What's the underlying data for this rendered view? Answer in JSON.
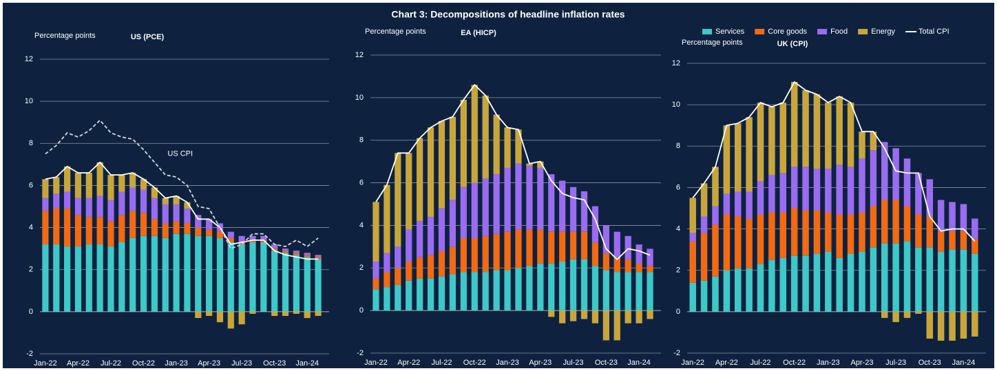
{
  "title": "Chart 3: Decompositions of headline inflation rates",
  "chart_data": [
    {
      "type": "bar",
      "stacked": true,
      "title": "US (PCE)",
      "ylabel": "Percentage points",
      "grid": true,
      "legend": false,
      "categories": [
        "Jan-22",
        null,
        null,
        "Apr-22",
        null,
        null,
        "Jul-22",
        null,
        null,
        "Oct-22",
        null,
        null,
        "Jan-23",
        null,
        null,
        "Apr-23",
        null,
        null,
        "Jul-23",
        null,
        null,
        "Oct-23",
        null,
        null,
        "Jan-24",
        null
      ],
      "ylim": [
        -2,
        12
      ],
      "yticks": [
        -2,
        0,
        2,
        4,
        6,
        8,
        10,
        12
      ],
      "series": [
        {
          "name": "Services",
          "color": "#3ec8c8",
          "values": [
            3.2,
            3.2,
            3.1,
            3.1,
            3.2,
            3.2,
            3.1,
            3.3,
            3.5,
            3.6,
            3.6,
            3.5,
            3.7,
            3.7,
            3.6,
            3.6,
            3.5,
            3.3,
            3.2,
            3.3,
            3.3,
            2.9,
            2.8,
            2.7,
            2.6,
            2.5
          ]
        },
        {
          "name": "Core goods",
          "color": "#f26a12",
          "values": [
            1.6,
            1.7,
            1.8,
            1.5,
            1.3,
            1.3,
            1.2,
            1.3,
            1.3,
            1.1,
            0.8,
            0.7,
            0.6,
            0.5,
            0.4,
            0.3,
            0.3,
            0.2,
            0.1,
            0.1,
            0.1,
            0.1,
            0.1,
            0.1,
            0.1,
            0.1
          ]
        },
        {
          "name": "Food",
          "color": "#9a6cf0",
          "values": [
            0.6,
            0.7,
            0.8,
            0.8,
            0.9,
            1.0,
            1.0,
            1.1,
            1.1,
            1.1,
            1.0,
            0.9,
            0.8,
            0.7,
            0.6,
            0.5,
            0.4,
            0.3,
            0.3,
            0.2,
            0.2,
            0.2,
            0.1,
            0.1,
            0.1,
            0.1
          ]
        },
        {
          "name": "Energy",
          "color": "#c9a63c",
          "values": [
            0.9,
            0.8,
            1.2,
            1.2,
            1.2,
            1.6,
            1.2,
            0.8,
            0.7,
            0.5,
            0.5,
            0.3,
            0.4,
            0.3,
            -0.3,
            -0.2,
            -0.5,
            -0.8,
            -0.6,
            -0.1,
            0.0,
            -0.2,
            -0.2,
            -0.1,
            -0.3,
            -0.2
          ]
        },
        {
          "name": "Total CPI",
          "type": "line",
          "color": "#ffffff",
          "values": [
            6.3,
            6.4,
            6.9,
            6.6,
            6.6,
            7.1,
            6.5,
            6.5,
            6.6,
            6.3,
            5.9,
            5.4,
            5.5,
            5.2,
            4.4,
            4.4,
            4.0,
            3.2,
            3.3,
            3.4,
            3.4,
            2.9,
            2.7,
            2.6,
            2.5,
            2.5
          ]
        },
        {
          "name": "US CPI",
          "type": "line",
          "dashed": true,
          "color": "#d8d8d8",
          "values": [
            7.5,
            7.9,
            8.5,
            8.3,
            8.6,
            9.1,
            8.5,
            8.3,
            8.2,
            7.7,
            7.1,
            6.5,
            6.4,
            6.0,
            5.0,
            4.9,
            4.0,
            3.0,
            3.2,
            3.7,
            3.7,
            3.2,
            3.1,
            3.4,
            3.1,
            3.5
          ]
        }
      ]
    },
    {
      "type": "bar",
      "stacked": true,
      "title": "EA (HICP)",
      "ylabel": "Percentage points",
      "grid": true,
      "legend": false,
      "categories": [
        "Jan-22",
        null,
        null,
        "Apr-22",
        null,
        null,
        "Jul-22",
        null,
        null,
        "Oct-22",
        null,
        null,
        "Jan-23",
        null,
        null,
        "Apr-23",
        null,
        null,
        "Jul-23",
        null,
        null,
        "Oct-23",
        null,
        null,
        "Jan-24",
        null
      ],
      "ylim": [
        -2,
        12
      ],
      "yticks": [
        -2,
        0,
        2,
        4,
        6,
        8,
        10,
        12
      ],
      "series": [
        {
          "name": "Services",
          "color": "#3ec8c8",
          "values": [
            1.0,
            1.1,
            1.2,
            1.4,
            1.5,
            1.5,
            1.6,
            1.7,
            1.8,
            1.8,
            1.8,
            1.9,
            1.9,
            2.0,
            2.1,
            2.2,
            2.2,
            2.3,
            2.4,
            2.4,
            2.1,
            1.9,
            1.8,
            1.8,
            1.8,
            1.8
          ]
        },
        {
          "name": "Core goods",
          "color": "#f26a12",
          "values": [
            0.5,
            0.7,
            0.8,
            0.9,
            1.0,
            1.1,
            1.2,
            1.3,
            1.6,
            1.6,
            1.7,
            1.7,
            1.8,
            1.8,
            1.7,
            1.6,
            1.5,
            1.4,
            1.3,
            1.3,
            1.1,
            0.8,
            0.7,
            0.6,
            0.4,
            0.3
          ]
        },
        {
          "name": "Food",
          "color": "#9a6cf0",
          "values": [
            0.8,
            0.9,
            1.0,
            1.5,
            1.7,
            1.8,
            2.0,
            2.2,
            2.4,
            2.6,
            2.7,
            2.8,
            3.0,
            3.1,
            3.0,
            2.9,
            2.7,
            2.4,
            2.1,
            1.9,
            1.7,
            1.3,
            1.2,
            1.1,
            0.9,
            0.8
          ]
        },
        {
          "name": "Energy",
          "color": "#c9a63c",
          "values": [
            2.8,
            3.2,
            4.4,
            3.6,
            3.9,
            4.2,
            4.1,
            3.9,
            4.1,
            4.6,
            3.9,
            2.8,
            1.9,
            1.6,
            0.1,
            0.3,
            -0.3,
            -0.6,
            -0.5,
            -0.4,
            -0.6,
            -1.4,
            -1.4,
            -0.6,
            -0.6,
            -0.4
          ]
        },
        {
          "name": "Total CPI",
          "type": "line",
          "color": "#ffffff",
          "values": [
            5.1,
            5.9,
            7.4,
            7.4,
            8.1,
            8.6,
            8.9,
            9.1,
            9.9,
            10.6,
            10.1,
            9.2,
            8.6,
            8.5,
            6.9,
            7.0,
            6.1,
            5.5,
            5.3,
            5.2,
            4.3,
            2.9,
            2.4,
            2.9,
            2.8,
            2.6
          ]
        }
      ]
    },
    {
      "type": "bar",
      "stacked": true,
      "title": "UK (CPI)",
      "ylabel": "Percentage points",
      "grid": true,
      "legend": true,
      "categories": [
        "Jan-22",
        null,
        null,
        "Apr-22",
        null,
        null,
        "Jul-22",
        null,
        null,
        "Oct-22",
        null,
        null,
        "Jan-23",
        null,
        null,
        "Apr-23",
        null,
        null,
        "Jul-23",
        null,
        null,
        "Oct-23",
        null,
        null,
        "Jan-24",
        null
      ],
      "ylim": [
        -2,
        12
      ],
      "yticks": [
        -2,
        0,
        2,
        4,
        6,
        8,
        10,
        12
      ],
      "series": [
        {
          "name": "Services",
          "color": "#3ec8c8",
          "values": [
            1.4,
            1.5,
            1.7,
            2.0,
            2.1,
            2.1,
            2.3,
            2.5,
            2.6,
            2.7,
            2.7,
            2.8,
            2.9,
            2.6,
            2.8,
            2.9,
            3.1,
            3.3,
            3.3,
            3.4,
            3.1,
            3.1,
            2.9,
            3.0,
            3.0,
            2.8
          ]
        },
        {
          "name": "Core goods",
          "color": "#f26a12",
          "values": [
            2.0,
            2.3,
            2.5,
            2.7,
            2.5,
            2.4,
            2.4,
            2.3,
            2.2,
            2.3,
            2.2,
            2.1,
            1.9,
            2.1,
            1.9,
            1.9,
            2.0,
            2.1,
            2.1,
            1.7,
            1.6,
            1.5,
            1.0,
            0.9,
            0.9,
            0.7
          ]
        },
        {
          "name": "Food",
          "color": "#9a6cf0",
          "values": [
            0.4,
            0.8,
            0.9,
            1.0,
            1.2,
            1.3,
            1.6,
            1.8,
            1.9,
            2.0,
            2.1,
            2.0,
            2.1,
            2.4,
            2.3,
            2.6,
            2.7,
            2.8,
            2.5,
            2.3,
            2.0,
            1.8,
            1.5,
            1.4,
            1.3,
            1.0
          ]
        },
        {
          "name": "Energy",
          "color": "#c9a63c",
          "values": [
            1.7,
            1.6,
            1.9,
            3.3,
            3.3,
            3.6,
            3.8,
            3.3,
            3.4,
            4.1,
            3.7,
            3.6,
            3.2,
            3.3,
            3.1,
            1.3,
            0.9,
            -0.3,
            -0.5,
            -0.3,
            -0.1,
            -1.3,
            -1.4,
            -1.4,
            -1.3,
            -1.2
          ]
        },
        {
          "name": "Total CPI",
          "type": "line",
          "color": "#ffffff",
          "values": [
            5.5,
            6.2,
            7.0,
            9.0,
            9.1,
            9.4,
            10.1,
            9.9,
            10.1,
            11.1,
            10.7,
            10.5,
            10.1,
            10.4,
            10.1,
            8.7,
            8.7,
            7.9,
            6.8,
            6.7,
            6.7,
            4.6,
            3.9,
            4.0,
            4.0,
            3.4
          ]
        }
      ]
    }
  ]
}
